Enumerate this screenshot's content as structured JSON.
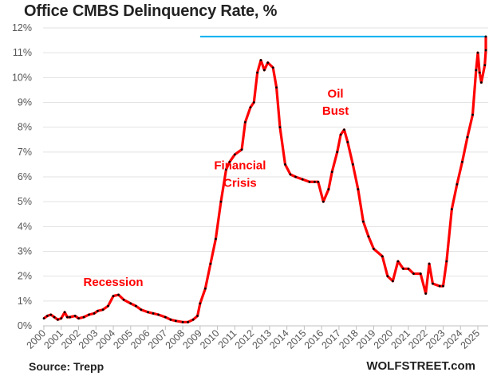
{
  "chart_data": {
    "type": "line",
    "title": "Office CMBS Delinquency Rate, %",
    "xlabel": "",
    "ylabel": "",
    "ylim": [
      0,
      12
    ],
    "xlim": [
      2000,
      2025
    ],
    "grid": true,
    "yticks": [
      "0%",
      "1%",
      "2%",
      "3%",
      "4%",
      "5%",
      "6%",
      "7%",
      "8%",
      "9%",
      "10%",
      "11%",
      "12%"
    ],
    "xticks": [
      "2000",
      "2001",
      "2002",
      "2003",
      "2004",
      "2005",
      "2006",
      "2007",
      "2008",
      "2009",
      "2010",
      "2011",
      "2012",
      "2013",
      "2014",
      "2015",
      "2016",
      "2017",
      "2018",
      "2019",
      "2020",
      "2021",
      "2022",
      "2023",
      "2024",
      "2025"
    ],
    "series": [
      {
        "color": "#ff0000",
        "marker_color": "#000000",
        "x": [
          2000.0,
          2000.2,
          2000.4,
          2000.6,
          2000.8,
          2001.0,
          2001.2,
          2001.35,
          2001.5,
          2001.8,
          2002.0,
          2002.3,
          2002.6,
          2002.9,
          2003.1,
          2003.4,
          2003.7,
          2004.0,
          2004.3,
          2004.6,
          2005.0,
          2005.3,
          2005.6,
          2006.0,
          2006.3,
          2006.6,
          2007.0,
          2007.3,
          2007.6,
          2008.0,
          2008.3,
          2008.6,
          2008.85,
          2009.0,
          2009.3,
          2009.6,
          2009.9,
          2010.2,
          2010.5,
          2010.7,
          2011.0,
          2011.4,
          2011.6,
          2011.9,
          2012.1,
          2012.3,
          2012.5,
          2012.7,
          2012.9,
          2013.2,
          2013.4,
          2013.6,
          2013.9,
          2014.2,
          2014.5,
          2014.9,
          2015.3,
          2015.6,
          2015.8,
          2016.1,
          2016.4,
          2016.6,
          2016.9,
          2017.1,
          2017.3,
          2017.5,
          2017.8,
          2018.1,
          2018.4,
          2018.7,
          2019.0,
          2019.5,
          2019.8,
          2020.1,
          2020.4,
          2020.7,
          2021.0,
          2021.3,
          2021.7,
          2022.0,
          2022.2,
          2022.4,
          2022.8,
          2023.0,
          2023.2,
          2023.5,
          2023.8,
          2024.1,
          2024.4,
          2024.7,
          2024.9,
          2025.0,
          2025.1,
          2025.2,
          2025.4,
          2025.6,
          2025.75
        ],
        "y": [
          0.3,
          0.4,
          0.45,
          0.35,
          0.25,
          0.3,
          0.55,
          0.35,
          0.35,
          0.4,
          0.3,
          0.35,
          0.45,
          0.5,
          0.6,
          0.65,
          0.8,
          1.2,
          1.25,
          1.05,
          0.9,
          0.8,
          0.65,
          0.55,
          0.5,
          0.45,
          0.35,
          0.25,
          0.2,
          0.15,
          0.15,
          0.25,
          0.4,
          0.9,
          1.5,
          2.5,
          3.5,
          5.0,
          6.3,
          6.6,
          6.9,
          7.1,
          8.2,
          8.8,
          9.0,
          10.2,
          10.7,
          10.3,
          10.6,
          10.4,
          9.6,
          8.0,
          6.5,
          6.1,
          6.0,
          5.9,
          5.8,
          5.8,
          5.8,
          5.0,
          5.5,
          6.2,
          7.0,
          7.7,
          7.9,
          7.4,
          6.5,
          5.5,
          4.2,
          3.6,
          3.1,
          2.8,
          2.0,
          1.8,
          2.6,
          2.3,
          2.3,
          2.1,
          2.1,
          1.3,
          2.5,
          1.7,
          1.6,
          1.6,
          2.6,
          4.7,
          5.7,
          6.6,
          7.6,
          8.5,
          10.3,
          11.0,
          10.2,
          9.8,
          10.5,
          11.1,
          11.65
        ]
      }
    ],
    "reference_line": {
      "y": 11.65,
      "x_from": 2009.0,
      "color": "#00b0f0"
    },
    "annotations": [
      {
        "text": "Recession",
        "x": 2004.0,
        "y": 1.6
      },
      {
        "text": "Financial",
        "x": 2011.3,
        "y": 6.3
      },
      {
        "text": "Crisis",
        "x": 2011.3,
        "y": 5.6
      },
      {
        "text": "Oil",
        "x": 2016.8,
        "y": 9.2
      },
      {
        "text": "Bust",
        "x": 2016.8,
        "y": 8.5
      }
    ]
  },
  "footer": {
    "source": "Source: Trepp",
    "credit": "WOLFSTREET.com"
  }
}
